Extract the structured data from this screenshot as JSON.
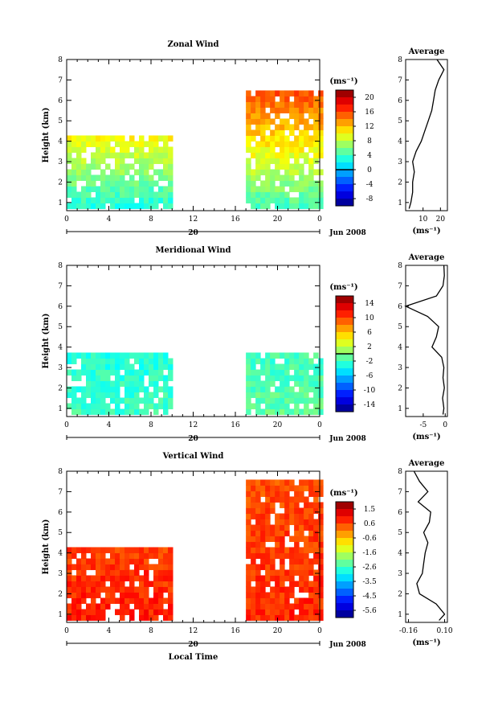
{
  "chart_data": [
    {
      "type": "heatmap",
      "title": "Zonal Wind",
      "ylabel": "Height (km)",
      "ylim": [
        0.6,
        8
      ],
      "yticks": [
        1,
        2,
        3,
        4,
        5,
        6,
        7,
        8
      ],
      "xticks": [
        "0",
        "4",
        "8",
        "12",
        "16",
        "20",
        "0"
      ],
      "date_label": "20",
      "month_label": "Jun 2008",
      "units": "(ms⁻¹)",
      "colorbar_ticks": [
        "20",
        "16",
        "12",
        "8",
        "4",
        "0",
        "-4",
        "-8"
      ],
      "colorbar_range": [
        -10,
        22
      ],
      "colorbar_marker": 0,
      "data_blocks": [
        {
          "x_range": [
            0,
            9.8
          ],
          "top": 4.1,
          "base_value": 3,
          "top_value": 10
        },
        {
          "x_range": [
            17,
            24
          ],
          "top": 6.4,
          "base_value": 4,
          "top_value": 16
        }
      ],
      "average": {
        "title": "Average",
        "xlabel": "(ms⁻¹)",
        "xticks": [
          "10",
          "20"
        ],
        "xlim": [
          0,
          24
        ],
        "profile": [
          [
            0.7,
            2
          ],
          [
            1,
            3
          ],
          [
            1.5,
            4
          ],
          [
            2,
            4
          ],
          [
            2.5,
            5
          ],
          [
            3,
            4
          ],
          [
            3.5,
            6
          ],
          [
            4,
            9
          ],
          [
            4.5,
            11
          ],
          [
            5,
            13
          ],
          [
            5.5,
            15
          ],
          [
            6,
            16
          ],
          [
            6.5,
            17
          ],
          [
            7,
            19
          ],
          [
            7.5,
            22
          ],
          [
            8,
            18
          ]
        ]
      }
    },
    {
      "type": "heatmap",
      "title": "Meridional Wind",
      "ylabel": "Height (km)",
      "ylim": [
        0.6,
        8
      ],
      "yticks": [
        1,
        2,
        3,
        4,
        5,
        6,
        7,
        8
      ],
      "xticks": [
        "0",
        "4",
        "8",
        "12",
        "16",
        "20",
        "0"
      ],
      "date_label": "20",
      "month_label": "Jun 2008",
      "units": "(ms⁻¹)",
      "colorbar_ticks": [
        "14",
        "10",
        "6",
        "2",
        "-2",
        "-6",
        "-10",
        "-14"
      ],
      "colorbar_range": [
        -16,
        16
      ],
      "colorbar_marker": 0,
      "data_blocks": [
        {
          "x_range": [
            0,
            9.8
          ],
          "top": 3.6,
          "base_value": -2,
          "top_value": -3
        },
        {
          "x_range": [
            17,
            24
          ],
          "top": 3.6,
          "base_value": -1,
          "top_value": -2
        }
      ],
      "average": {
        "title": "Average",
        "xlabel": "(ms⁻¹)",
        "xticks": [
          "-5",
          "0"
        ],
        "xlim": [
          -9,
          0.5
        ],
        "profile": [
          [
            0.7,
            -0.5
          ],
          [
            1,
            -0.3
          ],
          [
            1.5,
            -0.6
          ],
          [
            2,
            -0.2
          ],
          [
            2.5,
            -0.5
          ],
          [
            3,
            -0.3
          ],
          [
            3.5,
            -0.8
          ],
          [
            4,
            -3
          ],
          [
            4.5,
            -2
          ],
          [
            5,
            -1.5
          ],
          [
            5.5,
            -4
          ],
          [
            6,
            -9
          ],
          [
            6.5,
            -2
          ],
          [
            7,
            -0.5
          ],
          [
            7.5,
            -0.2
          ],
          [
            8,
            -0.3
          ]
        ]
      }
    },
    {
      "type": "heatmap",
      "title": "Vertical Wind",
      "xlabel": "Local Time",
      "ylabel": "Height (km)",
      "ylim": [
        0.6,
        8
      ],
      "yticks": [
        1,
        2,
        3,
        4,
        5,
        6,
        7,
        8
      ],
      "xticks": [
        "0",
        "4",
        "8",
        "12",
        "16",
        "20",
        "0"
      ],
      "date_label": "20",
      "month_label": "Jun 2008",
      "units": "(ms⁻¹)",
      "colorbar_ticks": [
        "1.5",
        "0.6",
        "-0.6",
        "-1.6",
        "-2.6",
        "-3.5",
        "-4.5",
        "-5.6"
      ],
      "colorbar_range": [
        -6,
        2
      ],
      "colorbar_marker": null,
      "data_blocks": [
        {
          "x_range": [
            0,
            9.8
          ],
          "top": 4.2,
          "base_value": 0.8,
          "top_value": 0.5
        },
        {
          "x_range": [
            17,
            24
          ],
          "top": 7.4,
          "base_value": 0.7,
          "top_value": 0.4
        }
      ],
      "average": {
        "title": "Average",
        "xlabel": "(ms⁻¹)",
        "xticks": [
          "-0.16",
          "0.10"
        ],
        "xlim": [
          -0.18,
          0.12
        ],
        "profile": [
          [
            0.7,
            0.06
          ],
          [
            1,
            0.1
          ],
          [
            1.5,
            0.04
          ],
          [
            2,
            -0.08
          ],
          [
            2.5,
            -0.1
          ],
          [
            3,
            -0.06
          ],
          [
            3.5,
            -0.05
          ],
          [
            4,
            -0.04
          ],
          [
            4.5,
            -0.02
          ],
          [
            5,
            -0.05
          ],
          [
            5.5,
            -0.01
          ],
          [
            6,
            0.0
          ],
          [
            6.5,
            -0.09
          ],
          [
            7,
            -0.02
          ],
          [
            7.5,
            -0.08
          ],
          [
            8,
            -0.12
          ]
        ]
      }
    }
  ]
}
